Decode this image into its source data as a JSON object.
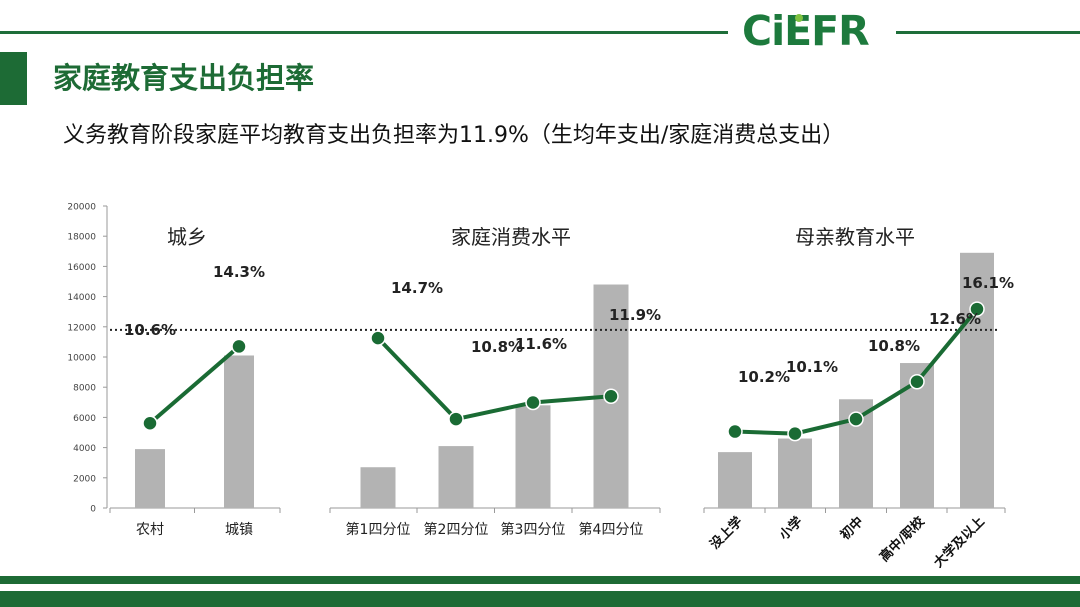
{
  "header": {
    "logo_text": "CiEFR",
    "title": "家庭教育支出负担率",
    "subtitle": "义务教育阶段家庭平均教育支出负担率为11.9%（生均年支出/家庭消费总支出）"
  },
  "colors": {
    "brand_green": "#1d6b35",
    "logo_green": "#1d7a3d",
    "logo_dot": "#7fc241",
    "bar_gray": "#b3b3b3",
    "line_green": "#1a6b34"
  },
  "chart_data": {
    "type": "bar",
    "y_axis": {
      "ylim": [
        0,
        20000
      ],
      "ticks": [
        0,
        2000,
        4000,
        6000,
        8000,
        10000,
        12000,
        14000,
        16000,
        18000,
        20000
      ]
    },
    "reference_line": {
      "value": 11800,
      "style": "dotted"
    },
    "panels": [
      {
        "title": "城乡",
        "categories": [
          "农村",
          "城镇"
        ],
        "bars": [
          3900,
          10100
        ],
        "rates": [
          10.6,
          14.3
        ],
        "rate_labels": [
          "10.6%",
          "14.3%"
        ]
      },
      {
        "title": "家庭消费水平",
        "categories": [
          "第1四分位",
          "第2四分位",
          "第3四分位",
          "第4四分位"
        ],
        "bars": [
          2700,
          4100,
          6800,
          14800
        ],
        "rates": [
          14.7,
          10.8,
          11.6,
          11.9
        ],
        "rate_labels": [
          "14.7%",
          "10.8%",
          "11.6%",
          "11.9%"
        ]
      },
      {
        "title": "母亲教育水平",
        "categories": [
          "没上学",
          "小学",
          "初中",
          "高中/职校",
          "大学及以上"
        ],
        "bars": [
          3700,
          4600,
          7200,
          9600,
          16900
        ],
        "rates": [
          10.2,
          10.1,
          10.8,
          12.6,
          16.1
        ],
        "rate_labels": [
          "10.2%",
          "10.1%",
          "10.8%",
          "12.6%",
          "16.1%"
        ]
      }
    ]
  }
}
